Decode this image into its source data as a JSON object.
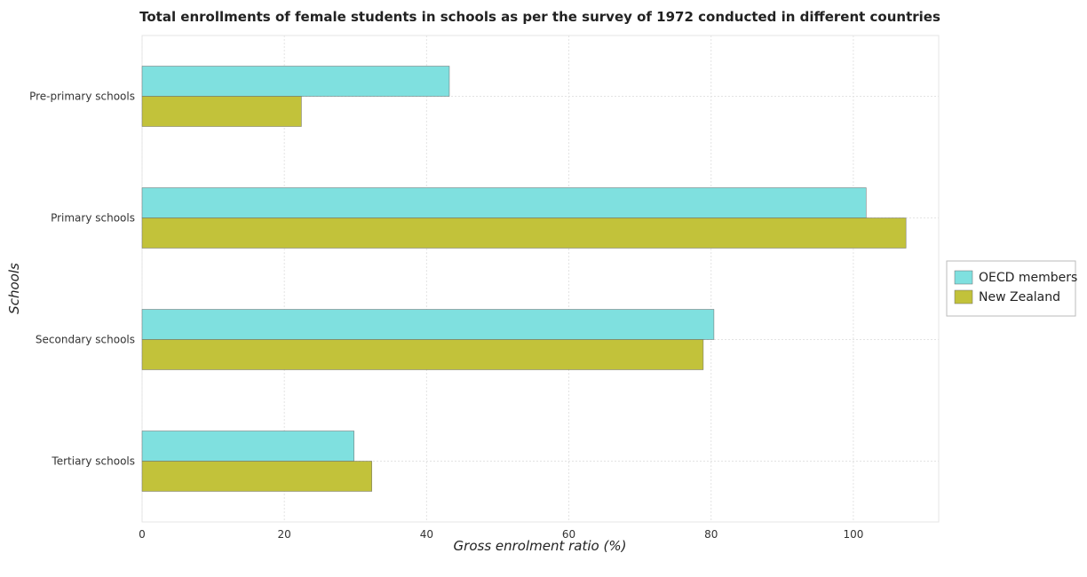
{
  "chart_data": {
    "type": "bar",
    "orientation": "horizontal",
    "title": "Total enrollments of female students in schools as per the survey of 1972 conducted in different countries",
    "xlabel": "Gross enrolment ratio (%)",
    "ylabel": "Schools",
    "categories": [
      "Pre-primary schools",
      "Primary schools",
      "Secondary schools",
      "Tertiary schools"
    ],
    "series": [
      {
        "name": "OECD members",
        "color": "#7fe0df",
        "values": [
          43.2,
          101.8,
          80.4,
          29.8
        ]
      },
      {
        "name": "New Zealand",
        "color": "#c2c23a",
        "values": [
          22.4,
          107.4,
          78.9,
          32.3
        ]
      }
    ],
    "xlim": [
      0,
      112
    ],
    "xticks": [
      0,
      20,
      40,
      60,
      80,
      100
    ],
    "grid": true,
    "legend_position": "right"
  }
}
